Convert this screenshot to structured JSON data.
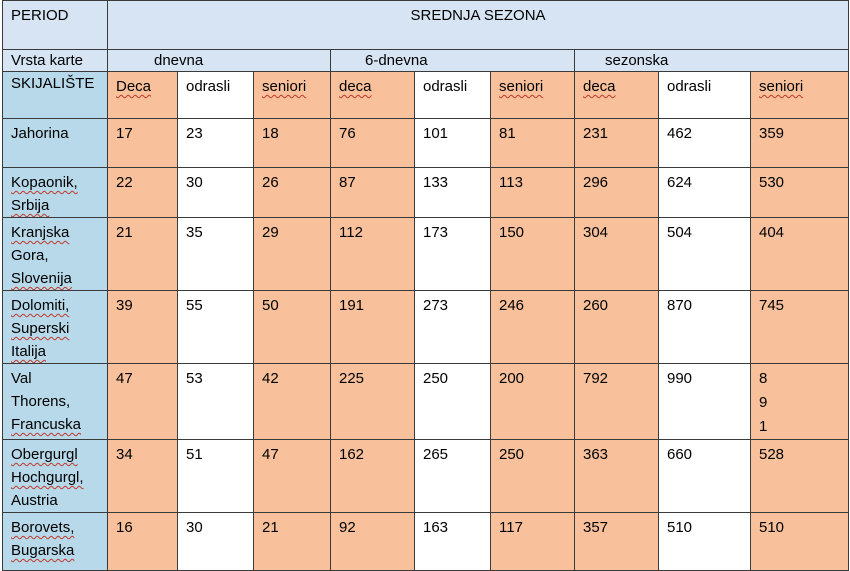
{
  "header": {
    "period_label": "PERIOD",
    "season_label": "SREDNJA SEZONA",
    "ticket_type_label": "Vrsta karte",
    "ski_resort_label": "SKIJALIŠTE"
  },
  "ticket_types": [
    "dnevna",
    "6-dnevna",
    "sezonska"
  ],
  "categories": [
    "Deca",
    "odrasli",
    "seniori",
    "deca",
    "odrasli",
    "seniori",
    "deca",
    "odrasli",
    "seniori"
  ],
  "rows": [
    {
      "resort": [
        "Jahorina"
      ],
      "prices": [
        "17",
        "23",
        "18",
        "76",
        "101",
        "81",
        "231",
        "462",
        "359"
      ]
    },
    {
      "resort": [
        "Kopaonik,",
        "Srbija"
      ],
      "prices": [
        "22",
        "30",
        "26",
        "87",
        "133",
        "113",
        "296",
        "624",
        "530"
      ]
    },
    {
      "resort": [
        "Kranjska",
        "Gora,",
        "Slovenija"
      ],
      "prices": [
        "21",
        "35",
        "29",
        "112",
        "173",
        "150",
        "304",
        "504",
        "404"
      ]
    },
    {
      "resort": [
        "Dolomiti,",
        "Superski",
        "Italija"
      ],
      "prices": [
        "39",
        "55",
        "50",
        "191",
        "273",
        "246",
        "260",
        "870",
        "745"
      ]
    },
    {
      "resort": [
        "Val",
        "Thorens,",
        "Francuska"
      ],
      "prices": [
        "47",
        "53",
        "42",
        "225",
        "250",
        "200",
        "792",
        "990",
        "891"
      ]
    },
    {
      "resort": [
        "Obergurgl",
        "Hochgurgl,",
        "Austria"
      ],
      "prices": [
        "34",
        "51",
        "47",
        "162",
        "265",
        "250",
        "363",
        "660",
        "528"
      ]
    },
    {
      "resort": [
        "Borovets,",
        "Bugarska"
      ],
      "prices": [
        "16",
        "30",
        "21",
        "92",
        "163",
        "117",
        "357",
        "510",
        "510"
      ]
    }
  ],
  "split_digits": [
    "8",
    "9",
    "1"
  ]
}
